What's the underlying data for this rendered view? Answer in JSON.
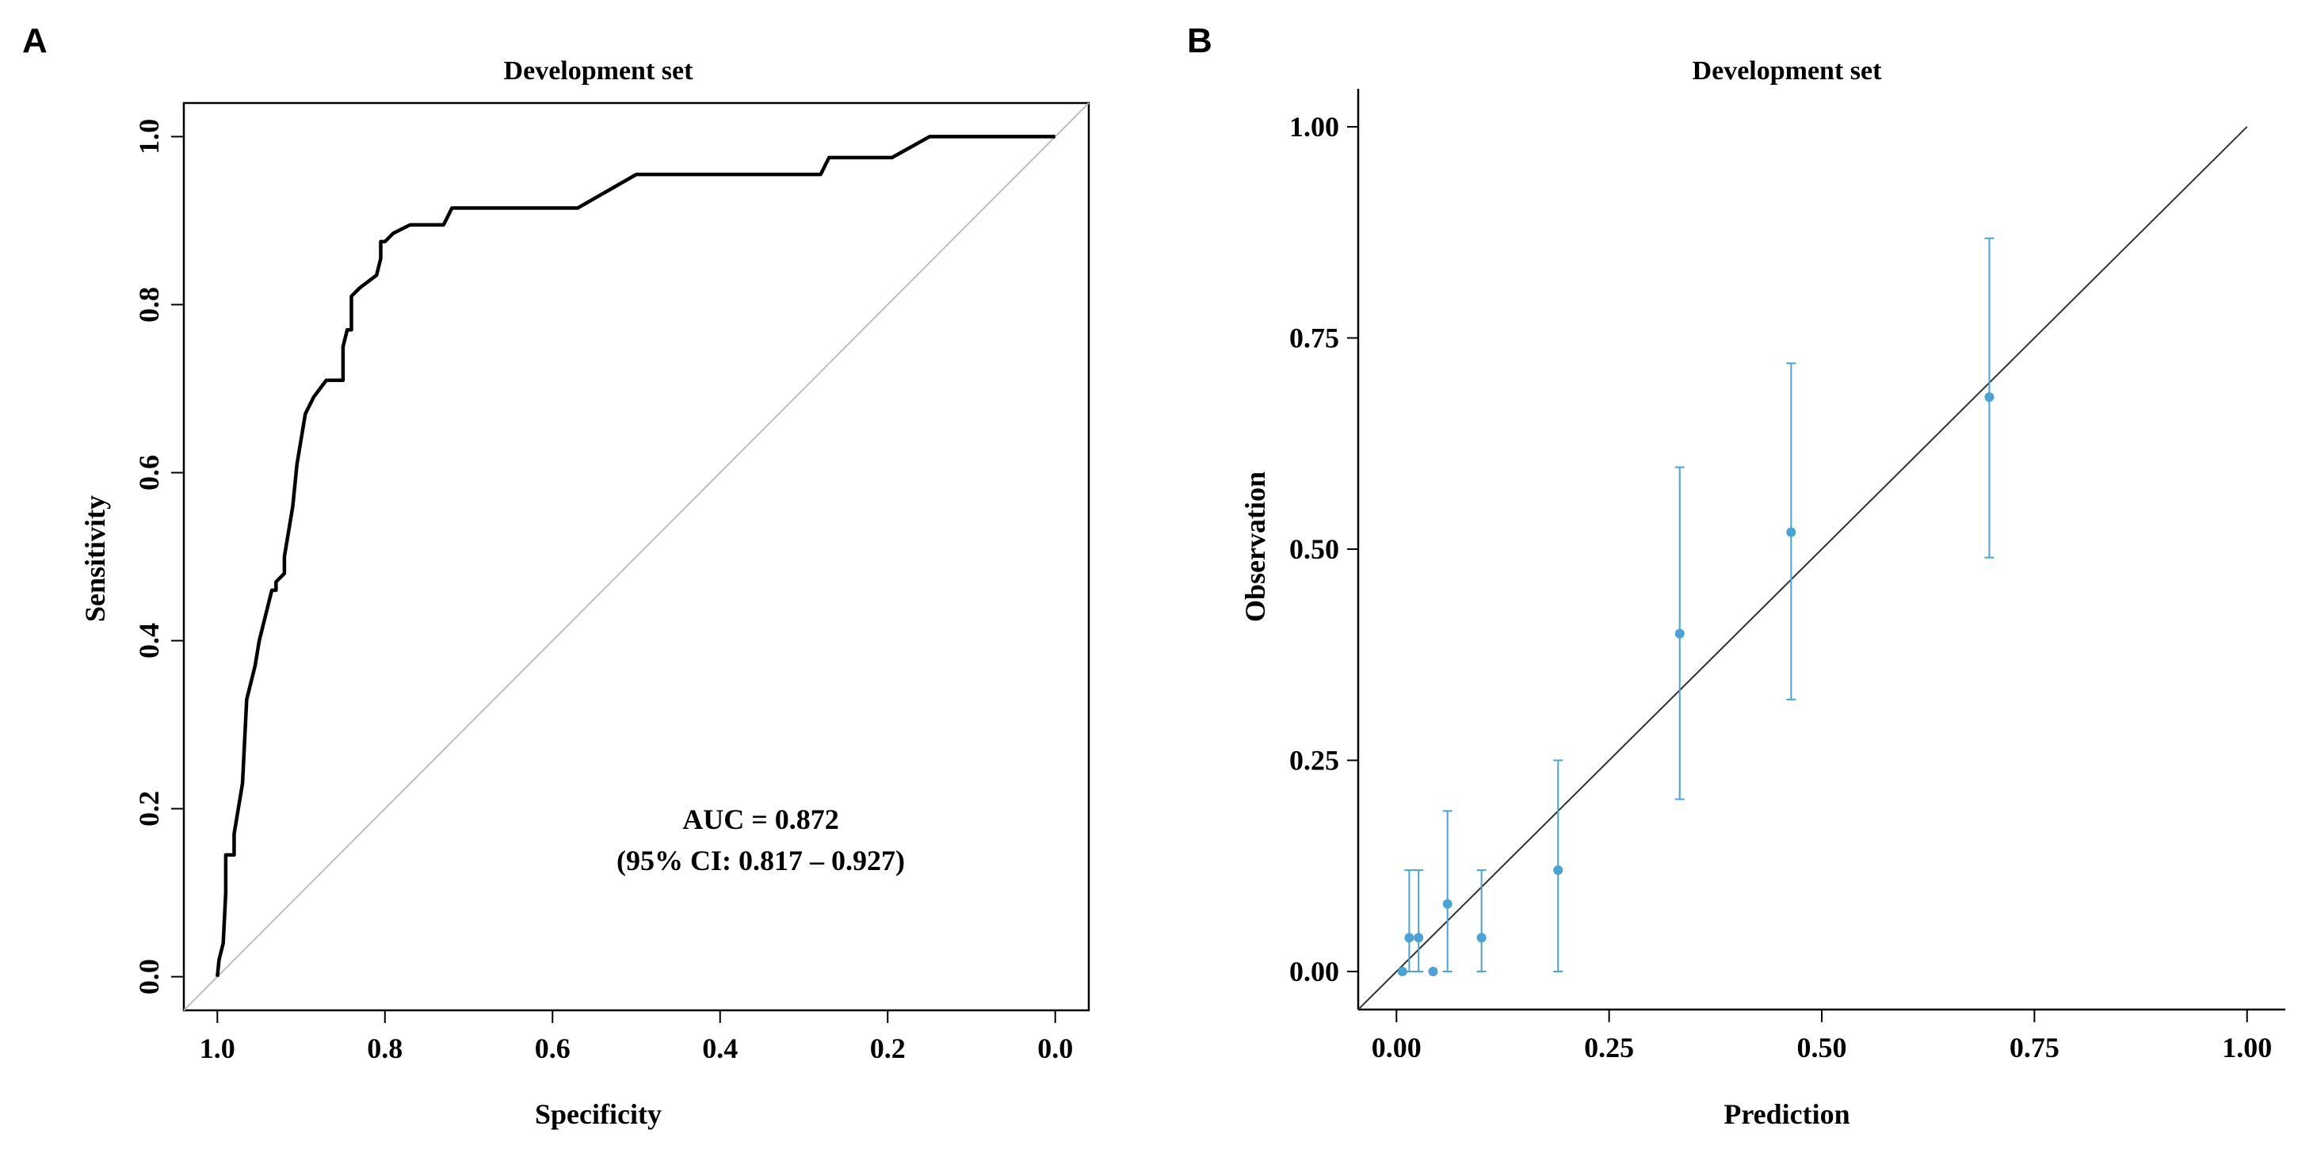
{
  "panels": [
    {
      "letter": "A"
    },
    {
      "letter": "B"
    }
  ],
  "chart_data": [
    {
      "type": "line",
      "title": "Development set",
      "xlabel": "Specificity",
      "ylabel": "Sensitivity",
      "x_reversed": true,
      "xlim": [
        1.0,
        0.0
      ],
      "ylim": [
        0.0,
        1.0
      ],
      "xticks": [
        1.0,
        0.8,
        0.6,
        0.4,
        0.2,
        0.0
      ],
      "xtick_labels": [
        "1.0",
        "0.8",
        "0.6",
        "0.4",
        "0.2",
        "0.0"
      ],
      "yticks": [
        0.0,
        0.2,
        0.4,
        0.6,
        0.8,
        1.0
      ],
      "ytick_labels": [
        "0.0",
        "0.2",
        "0.4",
        "0.6",
        "0.8",
        "1.0"
      ],
      "reference_line": {
        "from": [
          1.0,
          0.0
        ],
        "to": [
          0.0,
          1.0
        ],
        "color": "#bfbfbf"
      },
      "curve_color": "#000000",
      "roc_curve": {
        "specificity": [
          1.0,
          0.998,
          0.993,
          0.99,
          0.99,
          0.98,
          0.98,
          0.97,
          0.965,
          0.96,
          0.955,
          0.95,
          0.945,
          0.94,
          0.935,
          0.93,
          0.93,
          0.92,
          0.92,
          0.91,
          0.905,
          0.9,
          0.895,
          0.89,
          0.885,
          0.87,
          0.86,
          0.85,
          0.85,
          0.845,
          0.84,
          0.84,
          0.83,
          0.81,
          0.805,
          0.805,
          0.8,
          0.79,
          0.77,
          0.73,
          0.72,
          0.57,
          0.5,
          0.28,
          0.27,
          0.195,
          0.15,
          0.0
        ],
        "sensitivity": [
          0.0,
          0.02,
          0.04,
          0.1,
          0.145,
          0.145,
          0.17,
          0.23,
          0.33,
          0.35,
          0.37,
          0.4,
          0.42,
          0.44,
          0.46,
          0.46,
          0.47,
          0.48,
          0.5,
          0.56,
          0.61,
          0.64,
          0.67,
          0.68,
          0.69,
          0.71,
          0.71,
          0.71,
          0.75,
          0.77,
          0.77,
          0.81,
          0.82,
          0.835,
          0.855,
          0.875,
          0.875,
          0.885,
          0.895,
          0.895,
          0.915,
          0.915,
          0.955,
          0.955,
          0.975,
          0.975,
          1.0,
          1.0
        ]
      },
      "annotations": [
        "AUC = 0.872",
        "(95% CI: 0.817 – 0.927)"
      ]
    },
    {
      "type": "scatter",
      "title": "Development set",
      "xlabel": "Prediction",
      "ylabel": "Observation",
      "xlim": [
        -0.045,
        1.045
      ],
      "ylim": [
        -0.045,
        1.045
      ],
      "xticks": [
        0.0,
        0.25,
        0.5,
        0.75,
        1.0
      ],
      "xtick_labels": [
        "0.00",
        "0.25",
        "0.50",
        "0.75",
        "1.00"
      ],
      "yticks": [
        0.0,
        0.25,
        0.5,
        0.75,
        1.0
      ],
      "ytick_labels": [
        "0.00",
        "0.25",
        "0.50",
        "0.75",
        "1.00"
      ],
      "reference_line": {
        "from": [
          -0.045,
          -0.045
        ],
        "to": [
          1.0,
          1.0
        ],
        "color": "#333333"
      },
      "point_color": "#4aa3d4",
      "points": [
        {
          "x": 0.007,
          "y": 0.0,
          "lo": 0.0,
          "hi": 0.0
        },
        {
          "x": 0.015,
          "y": 0.04,
          "lo": 0.0,
          "hi": 0.12
        },
        {
          "x": 0.026,
          "y": 0.04,
          "lo": 0.0,
          "hi": 0.12
        },
        {
          "x": 0.043,
          "y": 0.0,
          "lo": 0.0,
          "hi": 0.0
        },
        {
          "x": 0.06,
          "y": 0.08,
          "lo": 0.0,
          "hi": 0.19
        },
        {
          "x": 0.1,
          "y": 0.04,
          "lo": 0.0,
          "hi": 0.12
        },
        {
          "x": 0.19,
          "y": 0.12,
          "lo": 0.0,
          "hi": 0.25
        },
        {
          "x": 0.333,
          "y": 0.4,
          "lo": 0.204,
          "hi": 0.597
        },
        {
          "x": 0.464,
          "y": 0.52,
          "lo": 0.322,
          "hi": 0.72
        },
        {
          "x": 0.697,
          "y": 0.68,
          "lo": 0.49,
          "hi": 0.868
        }
      ]
    }
  ]
}
